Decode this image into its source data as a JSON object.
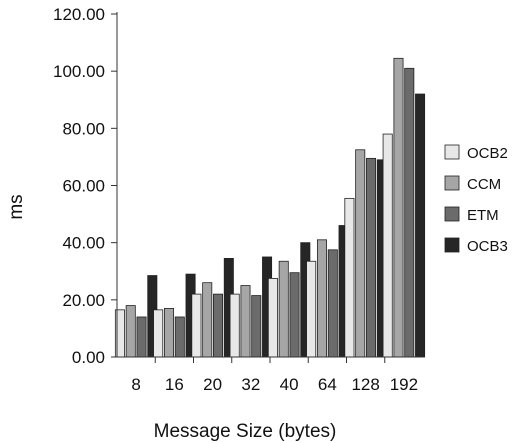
{
  "chart_data": {
    "type": "bar",
    "categories": [
      "8",
      "16",
      "20",
      "32",
      "40",
      "64",
      "128",
      "192"
    ],
    "series": [
      {
        "name": "OCB2",
        "color": "#e8e8e8",
        "values": [
          16.5,
          16.5,
          22.0,
          22.0,
          27.5,
          33.5,
          55.5,
          78.0
        ]
      },
      {
        "name": "CCM",
        "color": "#a6a6a6",
        "values": [
          18.0,
          17.0,
          26.0,
          25.0,
          33.5,
          41.0,
          72.5,
          104.5
        ]
      },
      {
        "name": "ETM",
        "color": "#6b6b6b",
        "values": [
          14.0,
          14.0,
          22.0,
          21.5,
          29.5,
          37.5,
          69.5,
          101.0
        ]
      },
      {
        "name": "OCB3",
        "color": "#262626",
        "values": [
          28.5,
          29.0,
          34.5,
          35.0,
          40.0,
          46.0,
          69.0,
          92.0
        ]
      }
    ],
    "xlabel": "Message Size (bytes)",
    "ylabel": "ms",
    "ylim": [
      0,
      120
    ],
    "yticks": [
      "0.00",
      "20.00",
      "40.00",
      "60.00",
      "80.00",
      "100.00",
      "120.00"
    ],
    "grid": false,
    "legend_position": "right"
  }
}
